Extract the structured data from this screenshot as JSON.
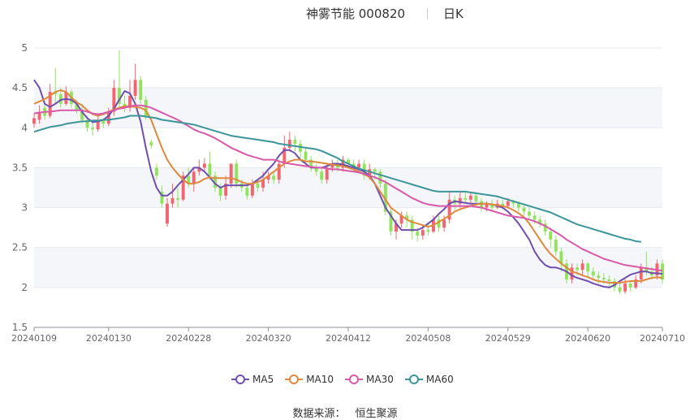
{
  "header": {
    "title": "神雾节能 000820",
    "period": "日K"
  },
  "footer": {
    "source_label": "数据来源：",
    "source_name": "恒生聚源"
  },
  "colors": {
    "up": "#f2656f",
    "down": "#91e25c",
    "MA5": "#6e4fb0",
    "MA10": "#e0883c",
    "MA30": "#d958a8",
    "MA60": "#3c9598",
    "grid": "#e6e9f0",
    "band": "#f5f6fa"
  },
  "chart_data": {
    "type": "candlestick",
    "title": "神雾节能 000820",
    "ylim": [
      1.5,
      5
    ],
    "y_ticks": [
      "1.5",
      "2",
      "2.5",
      "3",
      "3.5",
      "4",
      "4.5",
      "5"
    ],
    "x_tick_labels": [
      "20240109",
      "20240130",
      "20240228",
      "20240320",
      "20240412",
      "20240508",
      "20240529",
      "20240620",
      "20240710"
    ],
    "x_tick_index": [
      0,
      14,
      29,
      44,
      59,
      74,
      89,
      104,
      118
    ],
    "n_days": 119,
    "candles": [
      [
        4.05,
        4.12,
        4.18,
        4.0
      ],
      [
        4.1,
        4.2,
        4.28,
        4.05
      ],
      [
        4.25,
        4.15,
        4.3,
        4.1
      ],
      [
        4.15,
        4.45,
        4.55,
        4.12
      ],
      [
        4.45,
        4.42,
        4.75,
        4.3
      ],
      [
        4.42,
        4.3,
        4.5,
        4.25
      ],
      [
        4.3,
        4.45,
        4.52,
        4.28
      ],
      [
        4.45,
        4.3,
        4.48,
        4.25
      ],
      [
        4.3,
        4.22,
        4.35,
        4.18
      ],
      [
        4.22,
        4.1,
        4.3,
        4.05
      ],
      [
        4.1,
        4.0,
        4.15,
        3.95
      ],
      [
        4.0,
        3.98,
        4.08,
        3.9
      ],
      [
        3.98,
        4.1,
        4.15,
        3.95
      ],
      [
        4.1,
        4.05,
        4.12,
        4.0
      ],
      [
        4.05,
        4.2,
        4.25,
        4.02
      ],
      [
        4.2,
        4.5,
        4.6,
        4.15
      ],
      [
        4.5,
        4.3,
        4.97,
        4.25
      ],
      [
        4.3,
        4.25,
        4.4,
        4.2
      ],
      [
        4.25,
        4.4,
        4.6,
        4.2
      ],
      [
        4.4,
        4.6,
        4.8,
        4.35
      ],
      [
        4.6,
        4.35,
        4.65,
        4.3
      ],
      [
        4.35,
        4.15,
        4.4,
        4.1
      ],
      [
        3.82,
        3.78,
        3.85,
        3.74
      ],
      [
        3.5,
        3.4,
        3.55,
        3.35
      ],
      [
        3.2,
        3.05,
        3.28,
        3.0
      ],
      [
        2.8,
        3.05,
        3.12,
        2.76
      ],
      [
        3.05,
        3.12,
        3.3,
        3.0
      ],
      [
        3.12,
        3.1,
        3.25,
        3.0
      ],
      [
        3.1,
        3.4,
        3.45,
        3.08
      ],
      [
        3.4,
        3.3,
        3.5,
        3.25
      ],
      [
        3.3,
        3.45,
        3.5,
        3.2
      ],
      [
        3.45,
        3.5,
        3.6,
        3.4
      ],
      [
        3.5,
        3.55,
        3.62,
        3.45
      ],
      [
        3.55,
        3.4,
        3.7,
        3.35
      ],
      [
        3.4,
        3.25,
        3.45,
        3.2
      ],
      [
        3.25,
        3.15,
        3.3,
        3.08
      ],
      [
        3.15,
        3.3,
        3.4,
        3.1
      ],
      [
        3.3,
        3.55,
        3.55,
        3.25
      ],
      [
        3.55,
        3.3,
        3.6,
        3.25
      ],
      [
        3.3,
        3.25,
        3.35,
        3.2
      ],
      [
        3.25,
        3.15,
        3.3,
        3.1
      ],
      [
        3.15,
        3.3,
        3.35,
        3.12
      ],
      [
        3.3,
        3.25,
        3.35,
        3.2
      ],
      [
        3.25,
        3.35,
        3.45,
        3.2
      ],
      [
        3.35,
        3.4,
        3.45,
        3.3
      ],
      [
        3.4,
        3.35,
        3.45,
        3.3
      ],
      [
        3.35,
        3.55,
        3.6,
        3.3
      ],
      [
        3.55,
        3.75,
        3.9,
        3.5
      ],
      [
        3.75,
        3.85,
        3.95,
        3.7
      ],
      [
        3.85,
        3.8,
        3.9,
        3.7
      ],
      [
        3.8,
        3.7,
        3.85,
        3.6
      ],
      [
        3.7,
        3.6,
        3.75,
        3.55
      ],
      [
        3.6,
        3.5,
        3.65,
        3.45
      ],
      [
        3.5,
        3.45,
        3.55,
        3.4
      ],
      [
        3.45,
        3.35,
        3.5,
        3.3
      ],
      [
        3.35,
        3.5,
        3.55,
        3.3
      ],
      [
        3.5,
        3.55,
        3.6,
        3.45
      ],
      [
        3.55,
        3.5,
        3.6,
        3.45
      ],
      [
        3.5,
        3.6,
        3.65,
        3.45
      ],
      [
        3.6,
        3.55,
        3.62,
        3.5
      ],
      [
        3.55,
        3.5,
        3.6,
        3.45
      ],
      [
        3.5,
        3.55,
        3.6,
        3.45
      ],
      [
        3.55,
        3.4,
        3.6,
        3.35
      ],
      [
        3.4,
        3.48,
        3.55,
        3.35
      ],
      [
        3.48,
        3.45,
        3.5,
        3.35
      ],
      [
        3.45,
        3.3,
        3.48,
        3.25
      ],
      [
        3.3,
        2.95,
        3.35,
        2.9
      ],
      [
        2.95,
        2.7,
        3.0,
        2.65
      ],
      [
        2.7,
        2.8,
        2.85,
        2.6
      ],
      [
        2.8,
        2.9,
        2.95,
        2.75
      ],
      [
        2.9,
        2.85,
        2.95,
        2.75
      ],
      [
        2.85,
        2.7,
        2.9,
        2.6
      ],
      [
        2.7,
        2.65,
        2.75,
        2.58
      ],
      [
        2.65,
        2.72,
        2.78,
        2.6
      ],
      [
        2.72,
        2.7,
        2.8,
        2.65
      ],
      [
        2.7,
        2.85,
        2.9,
        2.68
      ],
      [
        2.85,
        2.75,
        2.9,
        2.7
      ],
      [
        2.75,
        2.85,
        2.9,
        2.7
      ],
      [
        2.85,
        3.1,
        3.2,
        2.8
      ],
      [
        3.1,
        3.05,
        3.15,
        2.95
      ],
      [
        3.05,
        3.12,
        3.2,
        3.0
      ],
      [
        3.12,
        3.1,
        3.2,
        3.05
      ],
      [
        3.1,
        3.15,
        3.2,
        3.05
      ],
      [
        3.15,
        3.08,
        3.2,
        3.0
      ],
      [
        3.08,
        3.0,
        3.12,
        2.95
      ],
      [
        3.0,
        3.05,
        3.08,
        2.95
      ],
      [
        3.05,
        3.0,
        3.1,
        2.95
      ],
      [
        3.0,
        3.05,
        3.1,
        2.98
      ],
      [
        3.05,
        3.02,
        3.1,
        2.98
      ],
      [
        3.02,
        3.08,
        3.12,
        3.0
      ],
      [
        3.08,
        3.05,
        3.1,
        3.0
      ],
      [
        3.05,
        3.0,
        3.08,
        2.95
      ],
      [
        3.0,
        2.95,
        3.05,
        2.9
      ],
      [
        2.95,
        2.9,
        3.0,
        2.85
      ],
      [
        2.9,
        2.85,
        2.95,
        2.8
      ],
      [
        2.85,
        2.8,
        2.9,
        2.75
      ],
      [
        2.8,
        2.7,
        2.85,
        2.65
      ],
      [
        2.7,
        2.6,
        2.75,
        2.5
      ],
      [
        2.6,
        2.45,
        2.65,
        2.4
      ],
      [
        2.45,
        2.3,
        2.5,
        2.2
      ],
      [
        2.3,
        2.1,
        2.35,
        2.05
      ],
      [
        2.1,
        2.25,
        2.3,
        2.05
      ],
      [
        2.25,
        2.22,
        2.3,
        2.15
      ],
      [
        2.22,
        2.3,
        2.35,
        2.15
      ],
      [
        2.3,
        2.2,
        2.32,
        2.12
      ],
      [
        2.2,
        2.15,
        2.25,
        2.1
      ],
      [
        2.15,
        2.12,
        2.2,
        2.05
      ],
      [
        2.12,
        2.1,
        2.18,
        2.05
      ],
      [
        2.1,
        2.08,
        2.15,
        2.0
      ],
      [
        2.08,
        2.0,
        2.12,
        1.95
      ],
      [
        2.0,
        1.95,
        2.05,
        1.92
      ],
      [
        1.95,
        2.05,
        2.1,
        1.92
      ],
      [
        2.05,
        2.0,
        2.08,
        1.95
      ],
      [
        2.0,
        2.1,
        2.15,
        1.98
      ],
      [
        2.1,
        2.25,
        2.3,
        2.05
      ],
      [
        2.25,
        2.2,
        2.45,
        2.15
      ],
      [
        2.2,
        2.15,
        2.25,
        2.1
      ],
      [
        2.15,
        2.3,
        2.35,
        2.1
      ],
      [
        2.3,
        2.1,
        2.35,
        2.05
      ]
    ],
    "series": [
      {
        "name": "MA5",
        "values": [
          4.6,
          4.5,
          4.3,
          4.26,
          4.3,
          4.35,
          4.36,
          4.35,
          4.3,
          4.2,
          4.12,
          4.07,
          4.08,
          4.1,
          4.15,
          4.24,
          4.35,
          4.46,
          4.43,
          4.3,
          4.08,
          3.75,
          3.45,
          3.25,
          3.15,
          3.15,
          3.2,
          3.28,
          3.35,
          3.42,
          3.5,
          3.5,
          3.45,
          3.38,
          3.3,
          3.25,
          3.28,
          3.28,
          3.28,
          3.28,
          3.28,
          3.3,
          3.35,
          3.4,
          3.48,
          3.55,
          3.65,
          3.72,
          3.72,
          3.68,
          3.6,
          3.55,
          3.5,
          3.5,
          3.5,
          3.52,
          3.55,
          3.55,
          3.54,
          3.52,
          3.5,
          3.48,
          3.45,
          3.4,
          3.3,
          3.15,
          3.0,
          2.9,
          2.8,
          2.72,
          2.72,
          2.72,
          2.72,
          2.75,
          2.8,
          2.85,
          2.92,
          2.98,
          3.05,
          3.08,
          3.07,
          3.06,
          3.05,
          3.05,
          3.05,
          3.05,
          3.04,
          3.02,
          3.0,
          2.95,
          2.88,
          2.8,
          2.7,
          2.6,
          2.45,
          2.35,
          2.28,
          2.25,
          2.25,
          2.23,
          2.2,
          2.15,
          2.12,
          2.1,
          2.08,
          2.05,
          2.03,
          2.01,
          2.0,
          2.03,
          2.08,
          2.12,
          2.16,
          2.18,
          2.2,
          2.2,
          2.18,
          2.18,
          2.17
        ]
      },
      {
        "name": "MA10",
        "values": [
          4.3,
          4.33,
          4.36,
          4.4,
          4.45,
          4.47,
          4.45,
          4.38,
          4.32,
          4.28,
          4.22,
          4.17,
          4.15,
          4.17,
          4.2,
          4.23,
          4.25,
          4.27,
          4.27,
          4.26,
          4.25,
          4.22,
          4.1,
          3.92,
          3.75,
          3.6,
          3.5,
          3.42,
          3.35,
          3.3,
          3.3,
          3.32,
          3.36,
          3.38,
          3.37,
          3.37,
          3.37,
          3.37,
          3.35,
          3.32,
          3.3,
          3.3,
          3.32,
          3.35,
          3.4,
          3.45,
          3.5,
          3.55,
          3.58,
          3.6,
          3.6,
          3.58,
          3.58,
          3.57,
          3.56,
          3.55,
          3.54,
          3.53,
          3.52,
          3.5,
          3.48,
          3.45,
          3.42,
          3.38,
          3.3,
          3.2,
          3.1,
          3.0,
          2.95,
          2.9,
          2.85,
          2.82,
          2.8,
          2.78,
          2.76,
          2.78,
          2.82,
          2.86,
          2.9,
          2.95,
          2.98,
          3.0,
          3.02,
          3.04,
          3.05,
          3.05,
          3.04,
          3.03,
          3.02,
          3.0,
          2.97,
          2.93,
          2.88,
          2.8,
          2.7,
          2.6,
          2.5,
          2.42,
          2.36,
          2.3,
          2.25,
          2.2,
          2.18,
          2.15,
          2.13,
          2.1,
          2.08,
          2.07,
          2.06,
          2.06,
          2.06,
          2.07,
          2.08,
          2.08,
          2.08,
          2.1,
          2.12,
          2.13,
          2.12
        ]
      },
      {
        "name": "MA30",
        "values": [
          4.18,
          4.19,
          4.2,
          4.2,
          4.21,
          4.22,
          4.22,
          4.22,
          4.22,
          4.22,
          4.2,
          4.18,
          4.17,
          4.18,
          4.2,
          4.22,
          4.24,
          4.25,
          4.27,
          4.28,
          4.28,
          4.27,
          4.25,
          4.22,
          4.19,
          4.16,
          4.13,
          4.1,
          4.06,
          4.02,
          3.98,
          3.95,
          3.93,
          3.9,
          3.87,
          3.83,
          3.79,
          3.75,
          3.72,
          3.69,
          3.66,
          3.64,
          3.62,
          3.6,
          3.6,
          3.6,
          3.58,
          3.56,
          3.55,
          3.54,
          3.53,
          3.52,
          3.51,
          3.5,
          3.5,
          3.49,
          3.48,
          3.48,
          3.47,
          3.46,
          3.45,
          3.44,
          3.42,
          3.4,
          3.38,
          3.35,
          3.32,
          3.28,
          3.24,
          3.2,
          3.16,
          3.12,
          3.09,
          3.06,
          3.04,
          3.03,
          3.02,
          3.02,
          3.02,
          3.02,
          3.02,
          3.02,
          3.02,
          3.01,
          3.0,
          2.98,
          2.96,
          2.94,
          2.92,
          2.9,
          2.89,
          2.88,
          2.87,
          2.85,
          2.83,
          2.8,
          2.77,
          2.73,
          2.69,
          2.65,
          2.6,
          2.56,
          2.52,
          2.48,
          2.45,
          2.42,
          2.39,
          2.36,
          2.34,
          2.32,
          2.3,
          2.28,
          2.27,
          2.26,
          2.25,
          2.24,
          2.23,
          2.22,
          2.21
        ]
      },
      {
        "name": "MA60",
        "values": [
          3.95,
          3.97,
          3.99,
          4.01,
          4.02,
          4.03,
          4.05,
          4.06,
          4.07,
          4.08,
          4.08,
          4.09,
          4.09,
          4.1,
          4.1,
          4.11,
          4.12,
          4.13,
          4.15,
          4.15,
          4.15,
          4.14,
          4.13,
          4.12,
          4.1,
          4.09,
          4.08,
          4.07,
          4.06,
          4.05,
          4.04,
          4.02,
          4.0,
          3.98,
          3.96,
          3.94,
          3.92,
          3.9,
          3.89,
          3.88,
          3.87,
          3.86,
          3.85,
          3.84,
          3.83,
          3.82,
          3.8,
          3.79,
          3.78,
          3.77,
          3.76,
          3.75,
          3.74,
          3.73,
          3.71,
          3.68,
          3.65,
          3.62,
          3.58,
          3.55,
          3.52,
          3.49,
          3.47,
          3.45,
          3.43,
          3.41,
          3.39,
          3.37,
          3.35,
          3.33,
          3.31,
          3.29,
          3.27,
          3.25,
          3.23,
          3.21,
          3.2,
          3.2,
          3.2,
          3.2,
          3.2,
          3.2,
          3.19,
          3.18,
          3.17,
          3.16,
          3.15,
          3.14,
          3.12,
          3.1,
          3.08,
          3.06,
          3.04,
          3.02,
          3.0,
          2.98,
          2.96,
          2.94,
          2.91,
          2.88,
          2.85,
          2.82,
          2.79,
          2.77,
          2.75,
          2.73,
          2.71,
          2.69,
          2.67,
          2.65,
          2.63,
          2.61,
          2.6,
          2.58,
          2.57
        ]
      }
    ],
    "legend": [
      "MA5",
      "MA10",
      "MA30",
      "MA60"
    ],
    "legend_position": "bottom-center",
    "grid": true
  }
}
